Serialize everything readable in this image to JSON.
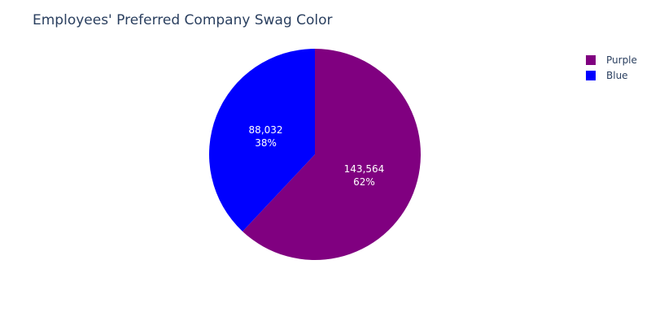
{
  "chart_data": {
    "type": "pie",
    "title": "Employees' Preferred Company Swag Color",
    "slices": [
      {
        "label": "Purple",
        "value": 143564,
        "value_text": "143,564",
        "percent_text": "62%",
        "color": "#800080"
      },
      {
        "label": "Blue",
        "value": 88032,
        "value_text": "88,032",
        "percent_text": "38%",
        "color": "#0000ff"
      }
    ],
    "legend_position": "top-right",
    "direction": "clockwise",
    "start_angle": "12 o'clock"
  }
}
